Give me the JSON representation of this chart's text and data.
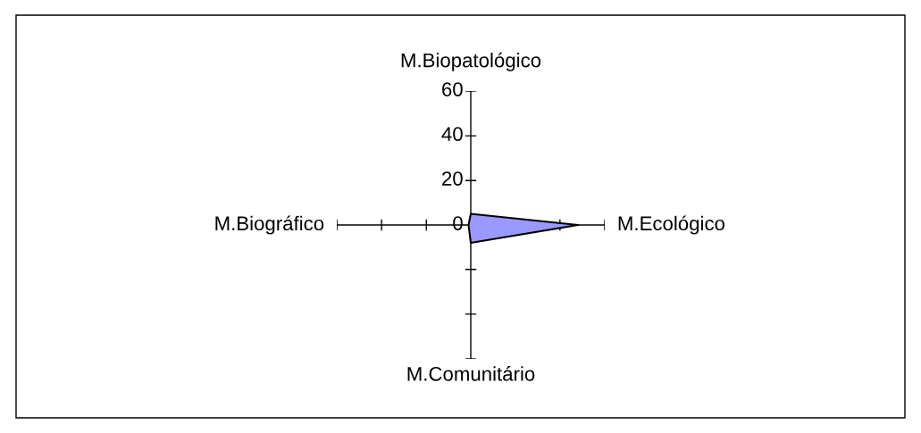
{
  "chart_data": {
    "type": "radar",
    "categories": [
      "M.Biopatológico",
      "M.Ecológico",
      "M.Comunitário",
      "M.Biográfico"
    ],
    "series": [
      {
        "color": "#9999ff",
        "values": [
          5,
          48,
          8,
          1
        ]
      }
    ],
    "ylim": [
      0,
      60
    ],
    "yticks": [
      0,
      20,
      40,
      60
    ]
  }
}
